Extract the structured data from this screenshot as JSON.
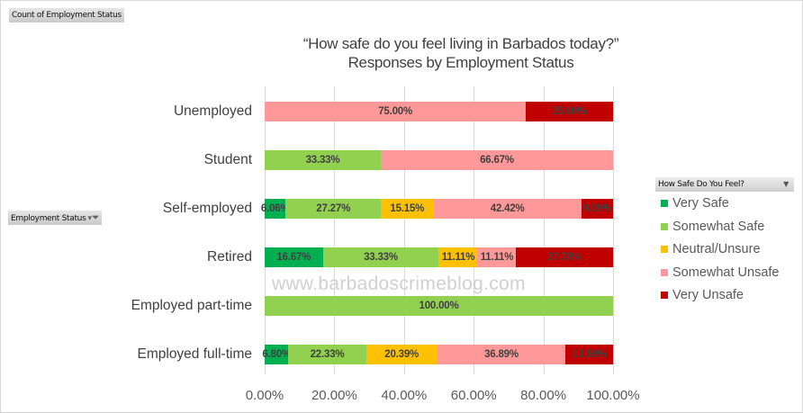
{
  "pivot": {
    "values_field": "Count of Employment Status",
    "axis_field": "Employment Status",
    "legend_field": "How Safe Do You Feel?"
  },
  "title_line1": "“How safe do you feel living in Barbados today?”",
  "title_line2": "Responses by Employment Status",
  "watermark": "www.barbadoscrimeblog.com",
  "colors": {
    "Very Safe": "#00b050",
    "Somewhat Safe": "#92d050",
    "Neutral/Unsure": "#ffc000",
    "Somewhat Unsafe": "#ff9999",
    "Very Unsafe": "#c00000"
  },
  "x_ticks": [
    "0.00%",
    "20.00%",
    "40.00%",
    "60.00%",
    "80.00%",
    "100.00%"
  ],
  "legend": [
    "Very Safe",
    "Somewhat Safe",
    "Neutral/Unsure",
    "Somewhat Unsafe",
    "Very Unsafe"
  ],
  "chart_data": {
    "type": "bar",
    "orientation": "horizontal",
    "stacked": "100%",
    "title": "“How safe do you feel living in Barbados today?” Responses by Employment Status",
    "xlabel": "",
    "ylabel": "Employment Status",
    "xlim": [
      0,
      100
    ],
    "grid": true,
    "legend_position": "right",
    "categories": [
      "Unemployed",
      "Student",
      "Self-employed",
      "Retired",
      "Employed part-time",
      "Employed full-time"
    ],
    "series": [
      {
        "name": "Very Safe",
        "values": [
          0,
          0,
          6.06,
          16.67,
          0,
          6.8
        ]
      },
      {
        "name": "Somewhat Safe",
        "values": [
          0,
          33.33,
          27.27,
          33.33,
          100.0,
          22.33
        ]
      },
      {
        "name": "Neutral/Unsure",
        "values": [
          0,
          0,
          15.15,
          11.11,
          0,
          20.39
        ]
      },
      {
        "name": "Somewhat Unsafe",
        "values": [
          75.0,
          66.67,
          42.42,
          11.11,
          0,
          36.89
        ]
      },
      {
        "name": "Very Unsafe",
        "values": [
          25.0,
          0,
          9.09,
          27.78,
          0,
          13.59
        ]
      }
    ]
  }
}
